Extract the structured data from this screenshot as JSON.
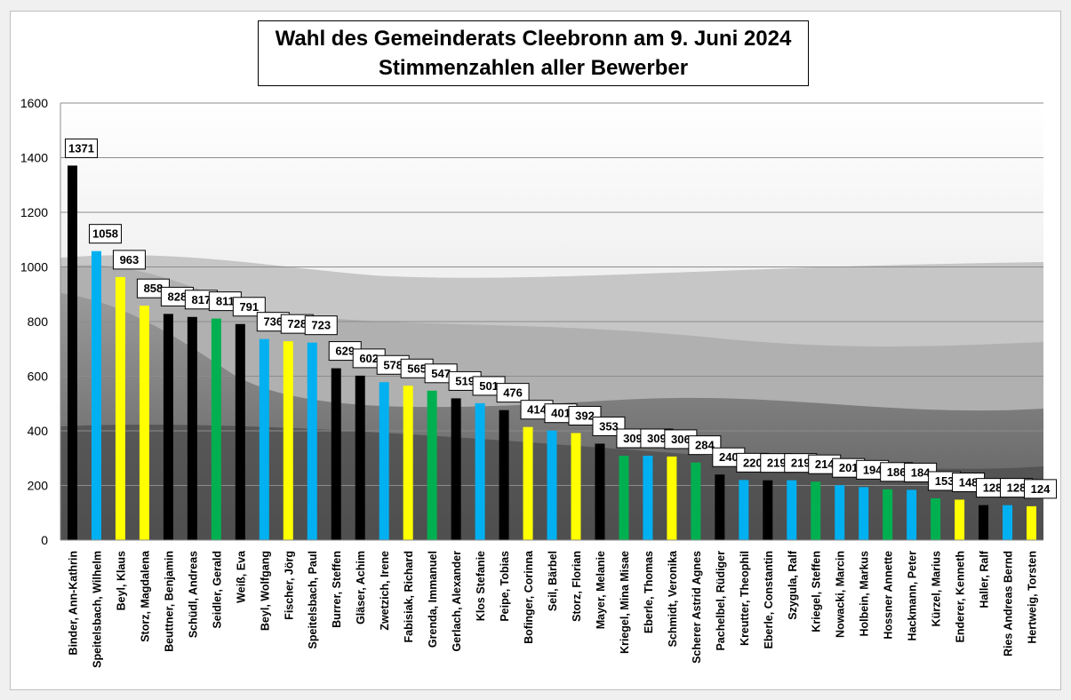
{
  "chart_data": {
    "type": "bar",
    "title": "Wahl des Gemeinderats Cleebronn am 9. Juni 2024",
    "subtitle": "Stimmenzahlen aller Bewerber",
    "ylim": [
      0,
      1600
    ],
    "yticks": [
      0,
      200,
      400,
      600,
      800,
      1000,
      1200,
      1400,
      1600
    ],
    "grid": true,
    "legend": "none",
    "colors": {
      "black": "#000000",
      "blue": "#00b0f0",
      "yellow": "#ffff00",
      "green": "#00b050"
    },
    "categories": [
      "Binder, Ann-Kathrin",
      "Speitelsbach, Wilhelm",
      "Beyl, Klaus",
      "Storz, Magdalena",
      "Beuttner, Benjamin",
      "Schüdl, Andreas",
      "Seidler, Gerald",
      "Weiß, Eva",
      "Beyl, Wolfgang",
      "Fischer, Jörg",
      "Speitelsbach, Paul",
      "Burrer, Steffen",
      "Gläser, Achim",
      "Zwetzich, Irene",
      "Fabisiak, Richard",
      "Grenda, Immanuel",
      "Gerlach, Alexander",
      "Klos Stefanie",
      "Peipe, Tobias",
      "Bofinger, Corinna",
      "Seil, Bärbel",
      "Storz, Florian",
      "Mayer, Melanie",
      "Kriegel, Mina Misae",
      "Eberle, Thomas",
      "Schmidt, Veronika",
      "Scherer Astrid Agnes",
      "Pachelbel, Rüdiger",
      "Kreutter, Theophil",
      "Eberle, Constantin",
      "Szygula, Ralf",
      "Kriegel, Steffen",
      "Nowacki, Marcin",
      "Holbein, Markus",
      "Hossner Annette",
      "Hackmann, Peter",
      "Kürzel, Marius",
      "Enderer, Kenneth",
      "Haller, Ralf",
      "Ries Andreas Bernd",
      "Hertweig, Torsten"
    ],
    "values": [
      1371,
      1058,
      963,
      858,
      828,
      817,
      811,
      791,
      736,
      728,
      723,
      629,
      602,
      578,
      565,
      547,
      519,
      501,
      476,
      414,
      401,
      392,
      353,
      309,
      309,
      306,
      284,
      240,
      220,
      219,
      219,
      214,
      201,
      194,
      186,
      184,
      153,
      148,
      128,
      128,
      124
    ],
    "bar_colors": [
      "black",
      "blue",
      "yellow",
      "yellow",
      "black",
      "black",
      "green",
      "black",
      "blue",
      "yellow",
      "blue",
      "black",
      "black",
      "blue",
      "yellow",
      "green",
      "black",
      "blue",
      "black",
      "yellow",
      "blue",
      "yellow",
      "black",
      "green",
      "blue",
      "yellow",
      "green",
      "black",
      "blue",
      "black",
      "blue",
      "green",
      "blue",
      "blue",
      "green",
      "blue",
      "green",
      "yellow",
      "black",
      "blue",
      "yellow"
    ]
  }
}
